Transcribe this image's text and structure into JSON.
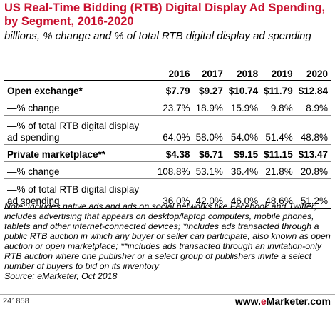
{
  "title": "US Real-Time Bidding (RTB) Digital Display Ad Spending, by Segment, 2016-2020",
  "subtitle": "billions, % change and % of total RTB digital display ad spending",
  "chart_data": {
    "type": "table",
    "columns": [
      "2016",
      "2017",
      "2018",
      "2019",
      "2020"
    ],
    "rows": [
      {
        "label": "Open exchange*",
        "values": [
          "$7.79",
          "$9.27",
          "$10.74",
          "$11.79",
          "$12.84"
        ]
      },
      {
        "label": "—% change",
        "values": [
          "23.7%",
          "18.9%",
          "15.9%",
          "9.8%",
          "8.9%"
        ]
      },
      {
        "label": "—% of total RTB digital display ad spending",
        "values": [
          "64.0%",
          "58.0%",
          "54.0%",
          "51.4%",
          "48.8%"
        ]
      },
      {
        "label": "Private marketplace**",
        "values": [
          "$4.38",
          "$6.71",
          "$9.15",
          "$11.15",
          "$13.47"
        ]
      },
      {
        "label": "—% change",
        "values": [
          "108.8%",
          "53.1%",
          "36.4%",
          "21.8%",
          "20.8%"
        ]
      },
      {
        "label": "—% of total RTB digital display ad spending",
        "values": [
          "36.0%",
          "42.0%",
          "46.0%",
          "48.6%",
          "51.2%"
        ]
      }
    ]
  },
  "note": "Note: includes native ads and ads on social networks like Facebook and Twitter; includes advertising that appears on desktop/laptop computers, mobile phones, tablets and other internet-connected devices; *includes ads transacted through a public RTB auction in which any buyer or seller can participate, also known as open auction or open marketplace; **includes ads transacted through an invitation-only RTB auction where one publisher or a select group of publishers invite a select number of buyers to bid on its inventory",
  "source": "Source: eMarketer, Oct 2018",
  "footer": {
    "chart_id": "241858",
    "brand_prefix": "www.",
    "brand_e": "e",
    "brand_rest": "Marketer.com"
  },
  "colors": {
    "title": "#c8102e",
    "brand_accent": "#c8102e"
  }
}
